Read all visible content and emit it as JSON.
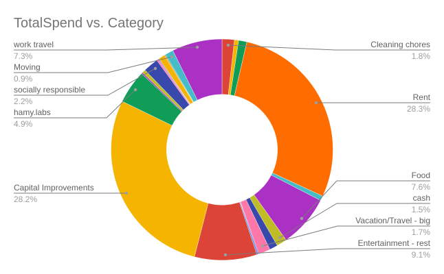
{
  "chart": {
    "title": "TotalSpend vs. Category",
    "labels": {
      "work_travel": {
        "name": "work travel",
        "pct": "7.3%"
      },
      "moving": {
        "name": "Moving",
        "pct": "0.9%"
      },
      "socially_responsible": {
        "name": "socially responsible",
        "pct": "2.2%"
      },
      "hamy_labs": {
        "name": "hamy.labs",
        "pct": "4.9%"
      },
      "capital_improvements": {
        "name": "Capital Improvements",
        "pct": "28.2%"
      },
      "cleaning_chores": {
        "name": "Cleaning chores",
        "pct": "1.8%"
      },
      "rent": {
        "name": "Rent",
        "pct": "28.3%"
      },
      "food": {
        "name": "Food",
        "pct": "7.6%"
      },
      "cash": {
        "name": "cash",
        "pct": "1.5%"
      },
      "vacation_travel_big": {
        "name": "Vacation/Travel - big",
        "pct": "1.7%"
      },
      "entertainment_rest": {
        "name": "Entertainment - rest",
        "pct": "9.1%"
      }
    }
  },
  "chart_data": {
    "type": "pie",
    "variant": "donut",
    "title": "TotalSpend vs. Category",
    "hole_ratio": 0.5,
    "start_angle_deg": 0,
    "direction": "clockwise",
    "legend_position": "labeled",
    "units": "percent of total",
    "slices": [
      {
        "label": "Cleaning chores",
        "value": 1.8,
        "color": "#db4437"
      },
      {
        "label": "",
        "value": 0.6,
        "color": "#f4b400"
      },
      {
        "label": "",
        "value": 1.2,
        "color": "#0f9d58"
      },
      {
        "label": "Rent",
        "value": 28.3,
        "color": "#ff6d00"
      },
      {
        "label": "",
        "value": 0.7,
        "color": "#46bdc6"
      },
      {
        "label": "Food",
        "value": 7.6,
        "color": "#ab30c4"
      },
      {
        "label": "cash",
        "value": 1.5,
        "color": "#c0bc26"
      },
      {
        "label": "",
        "value": 1.2,
        "color": "#3949ab"
      },
      {
        "label": "Vacation/Travel - big",
        "value": 1.7,
        "color": "#ff77a9"
      },
      {
        "label": "",
        "value": 0.1,
        "color": "#7e3794"
      },
      {
        "label": "",
        "value": 0.2,
        "color": "#4f86f0"
      },
      {
        "label": "Entertainment - rest",
        "value": 9.1,
        "color": "#db4437"
      },
      {
        "label": "Capital Improvements",
        "value": 28.2,
        "color": "#f4b400"
      },
      {
        "label": "hamy.labs",
        "value": 4.9,
        "color": "#0f9d58"
      },
      {
        "label": "",
        "value": 0.2,
        "color": "#ab30c4"
      },
      {
        "label": "",
        "value": 0.5,
        "color": "#c0bc26"
      },
      {
        "label": "socially responsible",
        "value": 2.2,
        "color": "#3949ab"
      },
      {
        "label": "",
        "value": 0.2,
        "color": "#ff77a9"
      },
      {
        "label": "",
        "value": 0.1,
        "color": "#ab30c4"
      },
      {
        "label": "",
        "value": 0.1,
        "color": "#7986cb"
      },
      {
        "label": "Moving",
        "value": 0.9,
        "color": "#f4b400"
      },
      {
        "label": "",
        "value": 0.1,
        "color": "#ff6d00"
      },
      {
        "label": "",
        "value": 0.1,
        "color": "#0f9d58"
      },
      {
        "label": "",
        "value": 1.2,
        "color": "#46bdc6"
      },
      {
        "label": "work travel",
        "value": 7.3,
        "color": "#ab30c4"
      }
    ]
  }
}
